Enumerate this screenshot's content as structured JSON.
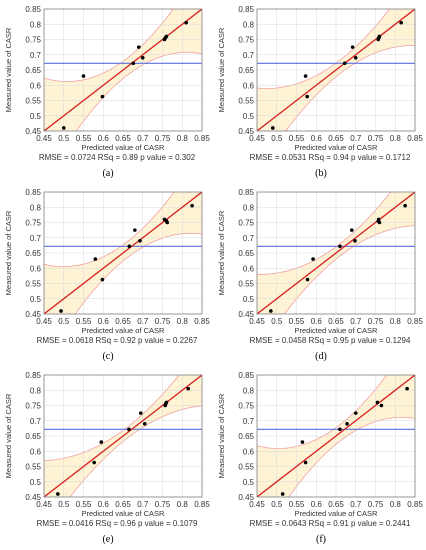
{
  "colors": {
    "band_fill": "#FFF3D6",
    "band_line": "#F2A0A0",
    "fit_line": "#D62020",
    "mean_line": "#5A6FE0",
    "points": "#000000",
    "grid": "#D9D9D9"
  },
  "chart_data": [
    {
      "type": "scatter",
      "panel_label": "(a)",
      "xlabel": "Predicted value of CASR",
      "ylabel": "Measured value of CASR",
      "stats_text": "RMSE = 0.0724 RSq = 0.89  p value = 0.302",
      "xlim": [
        0.45,
        0.85
      ],
      "ylim": [
        0.45,
        0.85
      ],
      "x_ticks": [
        "0.45",
        "0.5",
        "0.55",
        "0.6",
        "0.65",
        "0.7",
        "0.75",
        "0.8",
        "0.85"
      ],
      "y_ticks": [
        "0.45",
        "0.5",
        "0.55",
        "0.6",
        "0.65",
        "0.7",
        "0.75",
        "0.8",
        "0.85"
      ],
      "mean_y": 0.672,
      "band_half_width": {
        "center": 0.66,
        "min": 0.028,
        "curvature": 3.3
      },
      "points": [
        [
          0.5,
          0.46
        ],
        [
          0.55,
          0.63
        ],
        [
          0.598,
          0.563
        ],
        [
          0.676,
          0.672
        ],
        [
          0.69,
          0.725
        ],
        [
          0.7,
          0.69
        ],
        [
          0.755,
          0.75
        ],
        [
          0.757,
          0.755
        ],
        [
          0.76,
          0.76
        ],
        [
          0.81,
          0.805
        ]
      ]
    },
    {
      "type": "scatter",
      "panel_label": "(b)",
      "xlabel": "Predicted value of CASR",
      "ylabel": "Measured value of CASR",
      "stats_text": "RMSE = 0.0531 RSq = 0.94  p value = 0.1712",
      "xlim": [
        0.45,
        0.85
      ],
      "ylim": [
        0.45,
        0.85
      ],
      "x_ticks": [
        "0.45",
        "0.5",
        "0.55",
        "0.6",
        "0.65",
        "0.7",
        "0.75",
        "0.8",
        "0.85"
      ],
      "y_ticks": [
        "0.45",
        "0.5",
        "0.55",
        "0.6",
        "0.65",
        "0.7",
        "0.75",
        "0.8",
        "0.85"
      ],
      "mean_y": 0.672,
      "band_half_width": {
        "center": 0.66,
        "min": 0.022,
        "curvature": 2.7
      },
      "points": [
        [
          0.49,
          0.46
        ],
        [
          0.573,
          0.63
        ],
        [
          0.577,
          0.563
        ],
        [
          0.672,
          0.672
        ],
        [
          0.692,
          0.725
        ],
        [
          0.7,
          0.69
        ],
        [
          0.757,
          0.75
        ],
        [
          0.758,
          0.755
        ],
        [
          0.76,
          0.76
        ],
        [
          0.815,
          0.805
        ]
      ]
    },
    {
      "type": "scatter",
      "panel_label": "(c)",
      "xlabel": "Predicted value of CASR",
      "ylabel": "Measured value of CASR",
      "stats_text": "RMSE = 0.0618 RSq = 0.92  p value = 0.2267",
      "xlim": [
        0.45,
        0.85
      ],
      "ylim": [
        0.45,
        0.85
      ],
      "x_ticks": [
        "0.45",
        "0.5",
        "0.55",
        "0.6",
        "0.65",
        "0.7",
        "0.75",
        "0.8",
        "0.85"
      ],
      "y_ticks": [
        "0.45",
        "0.5",
        "0.55",
        "0.6",
        "0.65",
        "0.7",
        "0.75",
        "0.8",
        "0.85"
      ],
      "mean_y": 0.672,
      "band_half_width": {
        "center": 0.66,
        "min": 0.026,
        "curvature": 3.1
      },
      "points": [
        [
          0.493,
          0.46
        ],
        [
          0.58,
          0.63
        ],
        [
          0.598,
          0.563
        ],
        [
          0.666,
          0.672
        ],
        [
          0.68,
          0.725
        ],
        [
          0.693,
          0.69
        ],
        [
          0.755,
          0.76
        ],
        [
          0.76,
          0.755
        ],
        [
          0.762,
          0.75
        ],
        [
          0.825,
          0.805
        ]
      ]
    },
    {
      "type": "scatter",
      "panel_label": "(d)",
      "xlabel": "Predicted value of CASR",
      "ylabel": "Measured value of CASR",
      "stats_text": "RMSE = 0.0458 RSq = 0.95  p value = 0.1294",
      "xlim": [
        0.45,
        0.85
      ],
      "ylim": [
        0.45,
        0.85
      ],
      "x_ticks": [
        "0.45",
        "0.5",
        "0.55",
        "0.6",
        "0.65",
        "0.7",
        "0.75",
        "0.8",
        "0.85"
      ],
      "y_ticks": [
        "0.45",
        "0.5",
        "0.55",
        "0.6",
        "0.65",
        "0.7",
        "0.75",
        "0.8",
        "0.85"
      ],
      "mean_y": 0.672,
      "band_half_width": {
        "center": 0.66,
        "min": 0.02,
        "curvature": 2.5
      },
      "points": [
        [
          0.485,
          0.46
        ],
        [
          0.578,
          0.563
        ],
        [
          0.592,
          0.63
        ],
        [
          0.66,
          0.672
        ],
        [
          0.69,
          0.725
        ],
        [
          0.698,
          0.69
        ],
        [
          0.757,
          0.755
        ],
        [
          0.758,
          0.76
        ],
        [
          0.76,
          0.75
        ],
        [
          0.825,
          0.805
        ]
      ]
    },
    {
      "type": "scatter",
      "panel_label": "(e)",
      "xlabel": "Predicted value of CASR",
      "ylabel": "Measured value of CASR",
      "stats_text": "RMSE = 0.0416 RSq = 0.96  p value = 0.1079",
      "xlim": [
        0.45,
        0.85
      ],
      "ylim": [
        0.45,
        0.85
      ],
      "x_ticks": [
        "0.45",
        "0.5",
        "0.55",
        "0.6",
        "0.65",
        "0.7",
        "0.75",
        "0.8",
        "0.85"
      ],
      "y_ticks": [
        "0.45",
        "0.5",
        "0.55",
        "0.6",
        "0.65",
        "0.7",
        "0.75",
        "0.8",
        "0.85"
      ],
      "mean_y": 0.672,
      "band_half_width": {
        "center": 0.66,
        "min": 0.018,
        "curvature": 2.3
      },
      "points": [
        [
          0.485,
          0.46
        ],
        [
          0.577,
          0.563
        ],
        [
          0.595,
          0.63
        ],
        [
          0.665,
          0.672
        ],
        [
          0.695,
          0.725
        ],
        [
          0.705,
          0.69
        ],
        [
          0.757,
          0.75
        ],
        [
          0.758,
          0.755
        ],
        [
          0.76,
          0.76
        ],
        [
          0.815,
          0.805
        ]
      ]
    },
    {
      "type": "scatter",
      "panel_label": "(f)",
      "xlabel": "Predicted value of CASR",
      "ylabel": "Measured value of CASR",
      "stats_text": "RMSE = 0.0643 RSq = 0.91  p value = 0.2441",
      "xlim": [
        0.45,
        0.85
      ],
      "ylim": [
        0.45,
        0.85
      ],
      "x_ticks": [
        "0.45",
        "0.5",
        "0.55",
        "0.6",
        "0.65",
        "0.7",
        "0.75",
        "0.8",
        "0.85"
      ],
      "y_ticks": [
        "0.45",
        "0.5",
        "0.55",
        "0.6",
        "0.65",
        "0.7",
        "0.75",
        "0.8",
        "0.85"
      ],
      "mean_y": 0.672,
      "band_half_width": {
        "center": 0.66,
        "min": 0.027,
        "curvature": 3.2
      },
      "points": [
        [
          0.515,
          0.46
        ],
        [
          0.565,
          0.63
        ],
        [
          0.573,
          0.563
        ],
        [
          0.66,
          0.672
        ],
        [
          0.678,
          0.69
        ],
        [
          0.7,
          0.725
        ],
        [
          0.755,
          0.76
        ],
        [
          0.765,
          0.75
        ],
        [
          0.83,
          0.805
        ]
      ]
    }
  ]
}
